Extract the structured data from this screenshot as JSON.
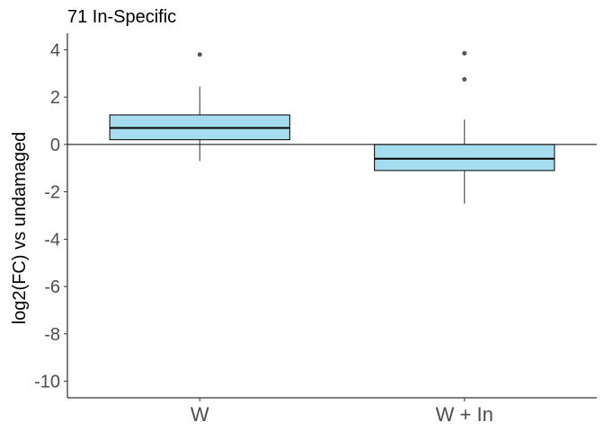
{
  "chart_data": {
    "type": "box",
    "title": "71 In-Specific",
    "ylabel": "log2(FC) vs undamaged",
    "xlabel": "",
    "ylim": [
      -10.7,
      4.7
    ],
    "yticks": [
      4,
      2,
      0,
      -2,
      -4,
      -6,
      -8,
      -10
    ],
    "categories": [
      "W",
      "W + In"
    ],
    "boxes": [
      {
        "category": "W",
        "whisker_low": -0.7,
        "q1": 0.2,
        "median": 0.7,
        "q3": 1.25,
        "whisker_high": 2.45,
        "outliers": [
          3.8
        ]
      },
      {
        "category": "W + In",
        "whisker_low": -2.5,
        "q1": -1.1,
        "median": -0.6,
        "q3": 0.0,
        "whisker_high": 1.05,
        "outliers": [
          3.85,
          2.75
        ]
      }
    ],
    "reference_line": 0,
    "fill_color": "#a6dcef",
    "outline_color": "#000000",
    "outlier_color": "#555555",
    "grid": false
  }
}
